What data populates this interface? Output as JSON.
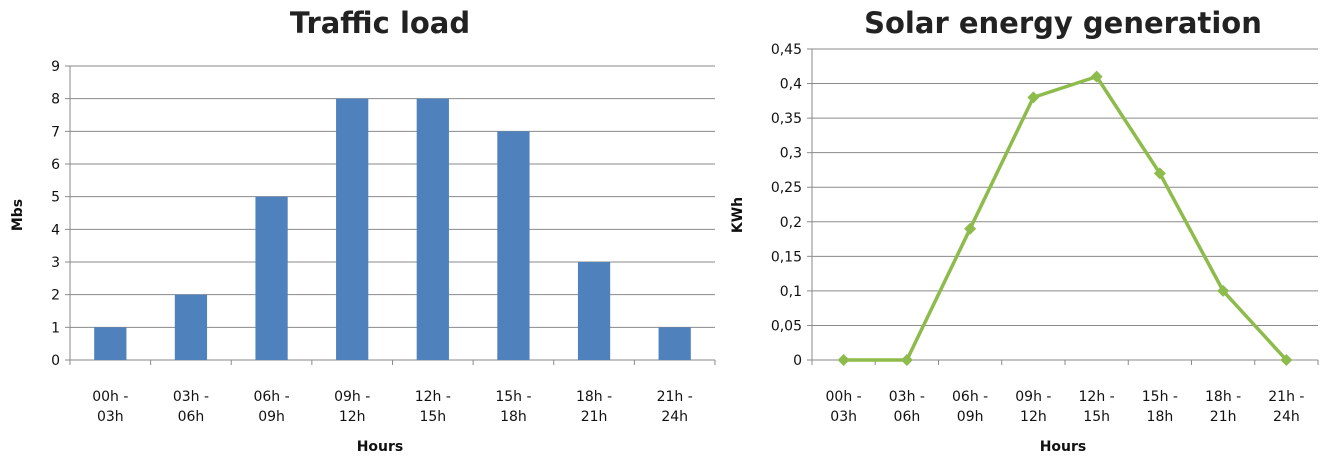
{
  "chart_data": [
    {
      "type": "bar",
      "title": "Traffic load",
      "xlabel": "Hours",
      "ylabel": "Mbs",
      "ylim": [
        0,
        9
      ],
      "yticks": [
        "0",
        "1",
        "2",
        "3",
        "4",
        "5",
        "6",
        "7",
        "8",
        "9"
      ],
      "grid": true,
      "categories": [
        [
          "00h -",
          "03h"
        ],
        [
          "03h -",
          "06h"
        ],
        [
          "06h -",
          "09h"
        ],
        [
          "09h -",
          "12h"
        ],
        [
          "12h -",
          "15h"
        ],
        [
          "15h -",
          "18h"
        ],
        [
          "18h -",
          "21h"
        ],
        [
          "21h -",
          "24h"
        ]
      ],
      "values": [
        1,
        2,
        5,
        8,
        8,
        7,
        3,
        1
      ],
      "color": "#4f81bd"
    },
    {
      "type": "line",
      "title": "Solar energy generation",
      "xlabel": "Hours",
      "ylabel": "KWh",
      "ylim": [
        0,
        0.45
      ],
      "yticks": [
        "0",
        "0,05",
        "0,1",
        "0,15",
        "0,2",
        "0,25",
        "0,3",
        "0,35",
        "0,4",
        "0,45"
      ],
      "grid": true,
      "marker": "diamond",
      "categories": [
        [
          "00h -",
          "03h"
        ],
        [
          "03h -",
          "06h"
        ],
        [
          "06h -",
          "09h"
        ],
        [
          "09h -",
          "12h"
        ],
        [
          "12h -",
          "15h"
        ],
        [
          "15h -",
          "18h"
        ],
        [
          "18h -",
          "21h"
        ],
        [
          "21h -",
          "24h"
        ]
      ],
      "values": [
        0,
        0,
        0.19,
        0.38,
        0.41,
        0.27,
        0.1,
        0
      ],
      "color": "#8dbb4c"
    }
  ]
}
